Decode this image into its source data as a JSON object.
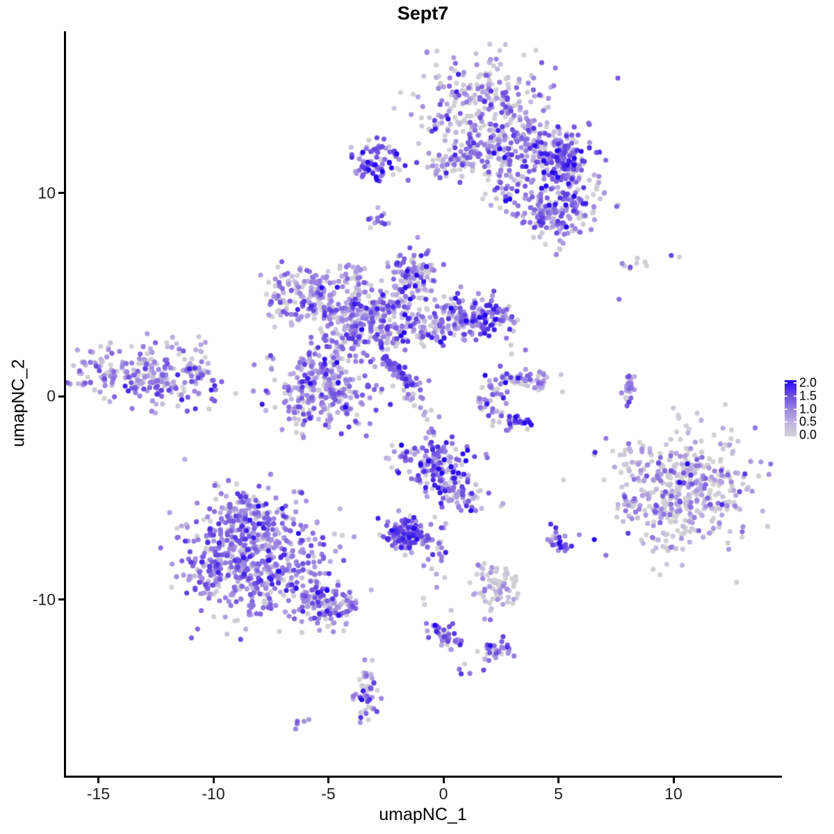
{
  "chart_data": {
    "type": "scatter",
    "title": "Sept7",
    "xlabel": "umapNC_1",
    "ylabel": "umapNC_2",
    "x_ticks": [
      -15,
      -10,
      -5,
      0,
      5,
      10
    ],
    "y_ticks": [
      -10,
      0,
      10
    ],
    "xlim": [
      -16.4,
      14.7
    ],
    "ylim": [
      -18.6,
      17.9
    ],
    "grid": false,
    "legend": {
      "position": "right",
      "ticks": [
        "2.0",
        "1.5",
        "1.0",
        "0.5",
        "0.0"
      ],
      "tick_values": [
        2,
        1.5,
        1,
        0.5,
        0
      ],
      "min": 0,
      "max": 2
    },
    "color_scale": {
      "low_color": "#D3D3D3",
      "high_color": "#2608F0",
      "stops": [
        [
          0,
          "#D3D3D3"
        ],
        [
          0.5,
          "#BEB2E1"
        ],
        [
          1,
          "#9880E0"
        ],
        [
          1.5,
          "#6949E0"
        ],
        [
          2,
          "#2608F0"
        ]
      ]
    },
    "point_radius_px": 3.6,
    "seed": 42,
    "clusters": [
      {
        "name": "top-main",
        "shape": "blob",
        "n": 280,
        "c": [
          1.8,
          14.1
        ],
        "s": [
          1.35,
          1.45
        ],
        "e": [
          0.85,
          0.5,
          0.28
        ]
      },
      {
        "name": "top-lower",
        "shape": "blob",
        "n": 110,
        "c": [
          1.8,
          12.0
        ],
        "s": [
          1.1,
          0.65
        ],
        "e": [
          0.85,
          0.5,
          0.3
        ]
      },
      {
        "name": "top-arm",
        "shape": "line",
        "n": 90,
        "a": [
          3.0,
          13.0
        ],
        "b": [
          5.5,
          11.7
        ],
        "w": 0.5,
        "e": [
          1.0,
          0.5,
          0.2
        ]
      },
      {
        "name": "top-right-lobe",
        "shape": "blob",
        "n": 130,
        "c": [
          5.2,
          11.6
        ],
        "s": [
          0.75,
          0.75
        ],
        "e": [
          1.25,
          0.45,
          0.1
        ]
      },
      {
        "name": "top-right-lower",
        "shape": "blob",
        "n": 120,
        "c": [
          5.4,
          9.3
        ],
        "s": [
          0.75,
          0.8
        ],
        "e": [
          1.05,
          0.55,
          0.22
        ]
      },
      {
        "name": "top-right-tip",
        "shape": "blob",
        "n": 60,
        "c": [
          4.4,
          8.9
        ],
        "s": [
          0.5,
          0.55
        ],
        "e": [
          1.0,
          0.5,
          0.25
        ]
      },
      {
        "name": "top-connector",
        "shape": "line",
        "n": 28,
        "a": [
          -0.5,
          11.2
        ],
        "b": [
          0.9,
          11.6
        ],
        "w": 0.28,
        "e": [
          0.9,
          0.45,
          0.25
        ]
      },
      {
        "name": "top-scatter",
        "shape": "blob",
        "n": 40,
        "c": [
          2.9,
          10.3
        ],
        "s": [
          0.7,
          0.5
        ],
        "e": [
          0.9,
          0.5,
          0.3
        ]
      },
      {
        "name": "left-small-dense",
        "shape": "blob",
        "n": 80,
        "c": [
          -2.85,
          11.55
        ],
        "s": [
          0.58,
          0.5
        ],
        "e": [
          1.35,
          0.5,
          0.1
        ]
      },
      {
        "name": "tiny-mid",
        "shape": "blob",
        "n": 12,
        "c": [
          -2.85,
          8.8
        ],
        "s": [
          0.22,
          0.38
        ],
        "e": [
          1.0,
          0.45,
          0.2
        ]
      },
      {
        "name": "star-ring",
        "shape": "ring",
        "n": 120,
        "c": [
          -6.4,
          5.1
        ],
        "r": 1.0,
        "t": 0.33,
        "a0": 0,
        "a1": 360,
        "e": [
          0.85,
          0.45,
          0.3
        ]
      },
      {
        "name": "star-bridge",
        "shape": "blob",
        "n": 80,
        "c": [
          -5.0,
          4.6
        ],
        "s": [
          0.7,
          0.7
        ],
        "e": [
          0.9,
          0.45,
          0.27
        ]
      },
      {
        "name": "star-column",
        "shape": "blob",
        "n": 140,
        "c": [
          -3.8,
          3.4
        ],
        "s": [
          0.55,
          0.8
        ],
        "e": [
          1.0,
          0.45,
          0.2
        ]
      },
      {
        "name": "star-up-arm",
        "shape": "line",
        "n": 35,
        "a": [
          -4.2,
          6.8
        ],
        "b": [
          -3.6,
          4.9
        ],
        "w": 0.25,
        "e": [
          0.9,
          0.45,
          0.25
        ]
      },
      {
        "name": "star-upright-blob",
        "shape": "blob",
        "n": 100,
        "c": [
          -1.3,
          6.0
        ],
        "s": [
          0.55,
          0.6
        ],
        "e": [
          1.0,
          0.5,
          0.2
        ]
      },
      {
        "name": "star-upright-conn",
        "shape": "line",
        "n": 70,
        "a": [
          -2.9,
          3.9
        ],
        "b": [
          -1.5,
          5.3
        ],
        "w": 0.4,
        "e": [
          0.95,
          0.45,
          0.25
        ]
      },
      {
        "name": "star-right-arm",
        "shape": "line",
        "n": 220,
        "a": [
          -3.0,
          2.9
        ],
        "b": [
          1.5,
          4.1
        ],
        "w": 0.5,
        "e": [
          1.0,
          0.5,
          0.2
        ]
      },
      {
        "name": "star-right-end",
        "shape": "blob",
        "n": 90,
        "c": [
          2.0,
          3.9
        ],
        "s": [
          0.55,
          0.5
        ],
        "e": [
          1.2,
          0.5,
          0.12
        ]
      },
      {
        "name": "star-streak",
        "shape": "line",
        "n": 80,
        "a": [
          -2.6,
          1.9
        ],
        "b": [
          -1.3,
          0.5
        ],
        "w": 0.1,
        "e": [
          1.1,
          0.35,
          0.06
        ]
      },
      {
        "name": "star-streak-halo",
        "shape": "line",
        "n": 20,
        "a": [
          -2.5,
          1.8
        ],
        "b": [
          -1.1,
          0.2
        ],
        "w": 0.3,
        "e": [
          0.9,
          0.4,
          0.25
        ]
      },
      {
        "name": "star-lower-blob",
        "shape": "blob",
        "n": 300,
        "c": [
          -5.2,
          0.4
        ],
        "s": [
          1.05,
          1.0
        ],
        "e": [
          0.95,
          0.45,
          0.25
        ]
      },
      {
        "name": "star-below-dots",
        "shape": "blob",
        "n": 15,
        "c": [
          -1.2,
          -0.3
        ],
        "s": [
          0.3,
          0.35
        ],
        "e": [
          0.9,
          0.4,
          0.3
        ]
      },
      {
        "name": "far-left",
        "shape": "blob",
        "n": 240,
        "c": [
          -12.9,
          1.05
        ],
        "s": [
          1.55,
          0.7
        ],
        "rot": -10,
        "e": [
          0.85,
          0.42,
          0.25
        ]
      },
      {
        "name": "far-left-tip",
        "shape": "line",
        "n": 30,
        "a": [
          -11.3,
          1.2
        ],
        "b": [
          -10.4,
          1.45
        ],
        "w": 0.25,
        "e": [
          0.85,
          0.4,
          0.25
        ]
      },
      {
        "name": "far-left-upper",
        "shape": "blob",
        "n": 12,
        "c": [
          -11.0,
          2.5
        ],
        "s": [
          0.5,
          0.3
        ],
        "e": [
          0.6,
          0.4,
          0.4
        ]
      },
      {
        "name": "c-shape",
        "shape": "ring",
        "n": 80,
        "c": [
          3.1,
          -0.15
        ],
        "r": 1.15,
        "t": 0.3,
        "a0": 60,
        "a1": 300,
        "e": [
          0.95,
          0.5,
          0.25
        ]
      },
      {
        "name": "c-top-right",
        "shape": "blob",
        "n": 35,
        "c": [
          4.0,
          0.8
        ],
        "s": [
          0.45,
          0.35
        ],
        "e": [
          0.7,
          0.4,
          0.35
        ]
      },
      {
        "name": "c-bottom-dark",
        "shape": "blob",
        "n": 10,
        "c": [
          3.3,
          -1.3
        ],
        "s": [
          0.3,
          0.15
        ],
        "e": [
          1.4,
          0.4,
          0.05
        ]
      },
      {
        "name": "c-strays",
        "shape": "blob",
        "n": 3,
        "c": [
          3.2,
          2.3
        ],
        "s": [
          0.3,
          0.2
        ],
        "e": [
          0.4,
          0.3,
          0.5
        ]
      },
      {
        "name": "right-arc",
        "shape": "line",
        "n": 26,
        "a": [
          8.0,
          -0.55
        ],
        "b": [
          8.15,
          1.05
        ],
        "w": 0.13,
        "e": [
          0.9,
          0.35,
          0.15
        ]
      },
      {
        "name": "topright-sparse",
        "shape": "blob",
        "n": 9,
        "c": [
          8.5,
          6.6
        ],
        "s": [
          0.95,
          0.28
        ],
        "e": [
          0.35,
          0.35,
          0.55
        ]
      },
      {
        "name": "topright-single",
        "shape": "blob",
        "n": 1,
        "c": [
          7.6,
          4.8
        ],
        "s": [
          0.02,
          0.02
        ],
        "e": [
          1.1,
          0.2,
          0
        ]
      },
      {
        "name": "topright-single2",
        "shape": "blob",
        "n": 1,
        "c": [
          9.9,
          6.95
        ],
        "s": [
          0.02,
          0.02
        ],
        "e": [
          1.6,
          0.2,
          0
        ]
      },
      {
        "name": "right-main",
        "shape": "blob",
        "n": 430,
        "c": [
          10.35,
          -4.4
        ],
        "s": [
          1.5,
          1.45
        ],
        "e": [
          0.62,
          0.55,
          0.42
        ]
      },
      {
        "name": "right-sat1",
        "shape": "blob",
        "n": 14,
        "c": [
          8.1,
          -2.9
        ],
        "s": [
          0.3,
          0.45
        ],
        "e": [
          0.55,
          0.5,
          0.45
        ]
      },
      {
        "name": "right-sat2",
        "shape": "blob",
        "n": 14,
        "c": [
          7.9,
          -5.3
        ],
        "s": [
          0.35,
          0.5
        ],
        "e": [
          0.55,
          0.5,
          0.45
        ]
      },
      {
        "name": "right-below",
        "shape": "blob",
        "n": 8,
        "c": [
          9.6,
          -7.2
        ],
        "s": [
          0.4,
          0.3
        ],
        "e": [
          0.6,
          0.5,
          0.4
        ]
      },
      {
        "name": "center-bottom",
        "shape": "blob",
        "n": 150,
        "c": [
          -0.35,
          -3.35
        ],
        "s": [
          0.72,
          0.7
        ],
        "e": [
          1.15,
          0.5,
          0.12
        ]
      },
      {
        "name": "center-bottom-tail",
        "shape": "line",
        "n": 55,
        "a": [
          0.3,
          -4.4
        ],
        "b": [
          1.3,
          -5.4
        ],
        "w": 0.4,
        "e": [
          1.0,
          0.5,
          0.2
        ]
      },
      {
        "name": "center-bottom-left",
        "shape": "blob",
        "n": 15,
        "c": [
          -1.6,
          -3.2
        ],
        "s": [
          0.3,
          0.4
        ],
        "e": [
          0.8,
          0.45,
          0.3
        ]
      },
      {
        "name": "center-trail",
        "shape": "line",
        "n": 12,
        "a": [
          0.0,
          -6.1
        ],
        "b": [
          -0.7,
          -10.4
        ],
        "w": 0.22,
        "e": [
          0.9,
          0.4,
          0.3
        ]
      },
      {
        "name": "center-strays",
        "shape": "blob",
        "n": 2,
        "c": [
          3.05,
          -5.7
        ],
        "s": [
          0.25,
          0.5
        ],
        "e": [
          0.7,
          0.4,
          0.4
        ]
      },
      {
        "name": "mid-sparse",
        "shape": "blob",
        "n": 8,
        "c": [
          -0.4,
          -6.2
        ],
        "s": [
          0.5,
          0.3
        ],
        "e": [
          0.9,
          0.4,
          0.3
        ]
      },
      {
        "name": "dense-dark-small",
        "shape": "blob",
        "n": 120,
        "c": [
          -1.75,
          -6.85
        ],
        "s": [
          0.5,
          0.38
        ],
        "e": [
          1.35,
          0.45,
          0.05
        ]
      },
      {
        "name": "dense-dark-tail",
        "shape": "line",
        "n": 14,
        "a": [
          -1.0,
          -7.1
        ],
        "b": [
          0.1,
          -7.6
        ],
        "w": 0.18,
        "e": [
          1.0,
          0.4,
          0.2
        ]
      },
      {
        "name": "bottomleft-main",
        "shape": "blob",
        "n": 560,
        "c": [
          -8.2,
          -7.9
        ],
        "s": [
          1.45,
          1.5
        ],
        "e": [
          1.0,
          0.42,
          0.12
        ]
      },
      {
        "name": "bottomleft-top",
        "shape": "blob",
        "n": 70,
        "c": [
          -8.7,
          -5.8
        ],
        "s": [
          0.75,
          0.45
        ],
        "e": [
          1.0,
          0.45,
          0.15
        ]
      },
      {
        "name": "bottomleft-left",
        "shape": "blob",
        "n": 50,
        "c": [
          -10.2,
          -8.6
        ],
        "s": [
          0.4,
          0.8
        ],
        "e": [
          0.95,
          0.42,
          0.15
        ]
      },
      {
        "name": "bottomleft-tail",
        "shape": "line",
        "n": 150,
        "a": [
          -6.3,
          -9.8
        ],
        "b": [
          -4.1,
          -10.7
        ],
        "w": 0.5,
        "e": [
          0.95,
          0.45,
          0.18
        ]
      },
      {
        "name": "bottom-mid-small",
        "shape": "blob",
        "n": 65,
        "c": [
          2.35,
          -9.4
        ],
        "s": [
          0.55,
          0.6
        ],
        "e": [
          0.5,
          0.4,
          0.45
        ]
      },
      {
        "name": "tiny-dense",
        "shape": "blob",
        "n": 26,
        "c": [
          5.0,
          -7.1
        ],
        "s": [
          0.28,
          0.3
        ],
        "e": [
          1.2,
          0.45,
          0.1
        ]
      },
      {
        "name": "bottom-chain",
        "shape": "line",
        "n": 22,
        "a": [
          -0.45,
          -10.9
        ],
        "b": [
          0.3,
          -12.4
        ],
        "w": 0.28,
        "e": [
          1.05,
          0.45,
          0.15
        ]
      },
      {
        "name": "bottom-chain-blob",
        "shape": "blob",
        "n": 18,
        "c": [
          0.3,
          -11.9
        ],
        "s": [
          0.25,
          0.35
        ],
        "e": [
          1.1,
          0.45,
          0.12
        ]
      },
      {
        "name": "bottom-small-right",
        "shape": "blob",
        "n": 30,
        "c": [
          2.25,
          -12.4
        ],
        "s": [
          0.4,
          0.28
        ],
        "e": [
          0.9,
          0.45,
          0.2
        ]
      },
      {
        "name": "bottom-dots",
        "shape": "blob",
        "n": 5,
        "c": [
          1.0,
          -13.2
        ],
        "s": [
          0.5,
          0.5
        ],
        "e": [
          1.0,
          0.4,
          0.2
        ]
      },
      {
        "name": "bottom-vertical",
        "shape": "blob",
        "n": 48,
        "c": [
          -3.3,
          -14.7
        ],
        "s": [
          0.28,
          0.7
        ],
        "e": [
          0.9,
          0.5,
          0.2
        ]
      },
      {
        "name": "bottom-tiny-pair",
        "shape": "blob",
        "n": 6,
        "c": [
          -6.0,
          -16.05
        ],
        "s": [
          0.3,
          0.12
        ],
        "e": [
          0.9,
          0.3,
          0.2
        ]
      }
    ]
  }
}
